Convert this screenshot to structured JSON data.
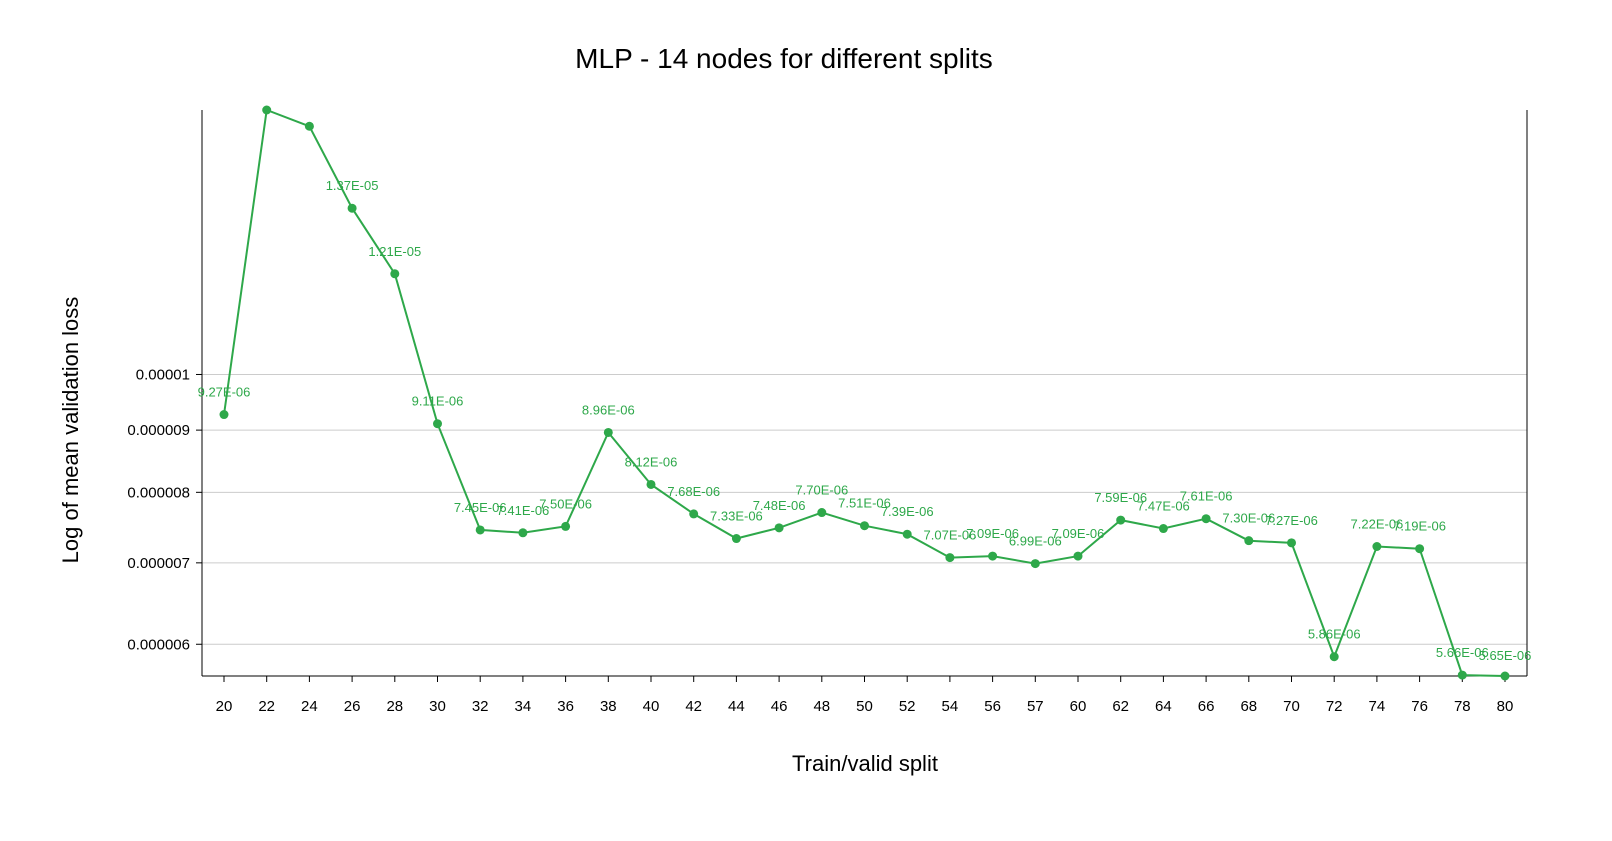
{
  "chart_data": {
    "type": "line",
    "title": "MLP - 14 nodes for different splits",
    "xlabel": "Train/valid split",
    "ylabel": "Log of mean validation loss",
    "y_scale": "log",
    "ylim": [
      5.65e-06,
      1.65e-05
    ],
    "y_ticks": [
      {
        "value": 6e-06,
        "label": "0.000006"
      },
      {
        "value": 7e-06,
        "label": "0.000007"
      },
      {
        "value": 8e-06,
        "label": "0.000008"
      },
      {
        "value": 9e-06,
        "label": "0.000009"
      },
      {
        "value": 1e-05,
        "label": "0.00001"
      }
    ],
    "grid": true,
    "color": "#2ea84a",
    "categories": [
      "20",
      "22",
      "24",
      "26",
      "28",
      "30",
      "32",
      "34",
      "36",
      "38",
      "40",
      "42",
      "44",
      "46",
      "48",
      "50",
      "52",
      "54",
      "56",
      "57",
      "60",
      "62",
      "64",
      "66",
      "68",
      "70",
      "72",
      "74",
      "76",
      "78",
      "80"
    ],
    "values": [
      9.27e-06,
      1.65e-05,
      1.6e-05,
      1.37e-05,
      1.21e-05,
      9.11e-06,
      7.45e-06,
      7.41e-06,
      7.5e-06,
      8.96e-06,
      8.12e-06,
      7.68e-06,
      7.33e-06,
      7.48e-06,
      7.7e-06,
      7.51e-06,
      7.39e-06,
      7.07e-06,
      7.09e-06,
      6.99e-06,
      7.09e-06,
      7.59e-06,
      7.47e-06,
      7.61e-06,
      7.3e-06,
      7.27e-06,
      5.86e-06,
      7.22e-06,
      7.19e-06,
      5.66e-06,
      5.65e-06
    ],
    "data_labels": [
      "9.27E-06",
      "",
      "",
      "1.37E-05",
      "1.21E-05",
      "9.11E-06",
      "7.45E-06",
      "7.41E-06",
      "7.50E-06",
      "8.96E-06",
      "8.12E-06",
      "7.68E-06",
      "7.33E-06",
      "7.48E-06",
      "7.70E-06",
      "7.51E-06",
      "7.39E-06",
      "7.07E-06",
      "7.09E-06",
      "6.99E-06",
      "7.09E-06",
      "7.59E-06",
      "7.47E-06",
      "7.61E-06",
      "7.30E-06",
      "7.27E-06",
      "5.86E-06",
      "7.22E-06",
      "7.19E-06",
      "5.66E-06",
      "5.65E-06"
    ]
  }
}
